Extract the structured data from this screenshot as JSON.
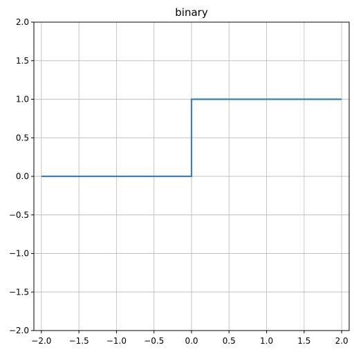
{
  "chart_data": {
    "type": "line",
    "title": "binary",
    "xlabel": "",
    "ylabel": "",
    "xlim": [
      -2.1,
      2.1
    ],
    "ylim": [
      -2.0,
      2.0
    ],
    "grid": true,
    "xticks": [
      -2.0,
      -1.5,
      -1.0,
      -0.5,
      0.0,
      0.5,
      1.0,
      1.5,
      2.0
    ],
    "yticks": [
      -2.0,
      -1.5,
      -1.0,
      -0.5,
      0.0,
      0.5,
      1.0,
      1.5,
      2.0
    ],
    "xtick_labels": [
      "−2.0",
      "−1.5",
      "−1.0",
      "−0.5",
      "0.0",
      "0.5",
      "1.0",
      "1.5",
      "2.0"
    ],
    "ytick_labels": [
      "−2.0",
      "−1.5",
      "−1.0",
      "−0.5",
      "0.0",
      "0.5",
      "1.0",
      "1.5",
      "2.0"
    ],
    "series": [
      {
        "color": "#3d7fb0",
        "x": [
          -2.0,
          0.0,
          0.0,
          2.0
        ],
        "y": [
          0.0,
          0.0,
          1.0,
          1.0
        ]
      }
    ]
  },
  "colors": {
    "axes": "#000000",
    "grid": "#c0c0c0"
  }
}
